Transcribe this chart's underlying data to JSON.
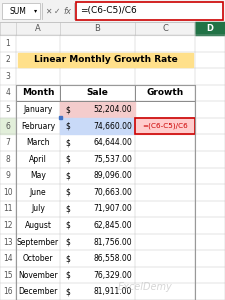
{
  "title": "Linear Monthly Growth Rate",
  "formula_bar_text": "=(C6-C5)/C6",
  "cell_ref": "SUM",
  "months": [
    "January",
    "February",
    "March",
    "April",
    "May",
    "June",
    "July",
    "August",
    "September",
    "October",
    "November",
    "December"
  ],
  "sales": [
    "52,204.00",
    "74,660.00",
    "64,644.00",
    "75,537.00",
    "89,096.00",
    "70,663.00",
    "71,907.00",
    "62,845.00",
    "81,756.00",
    "86,558.00",
    "76,329.00",
    "81,911.00"
  ],
  "title_bg": "#FFE08A",
  "col_headers": [
    "Month",
    "Sale",
    "Growth"
  ],
  "formula_cell_bg": "#FFCCCC",
  "formula_cell_border": "#CC0000",
  "formula_text_color": "#CC0000",
  "c5_bg": "#F4CCCC",
  "c6_bg": "#C9DAF8",
  "toolbar_bg": "#F2F2F2",
  "grid_color": "#BFBFBF",
  "d_col_header_bg": "#217346",
  "figsize": [
    2.25,
    3.0
  ],
  "dpi": 100,
  "formula_bar_border": "#CC0000",
  "row6_num_highlight": "#70AD47"
}
